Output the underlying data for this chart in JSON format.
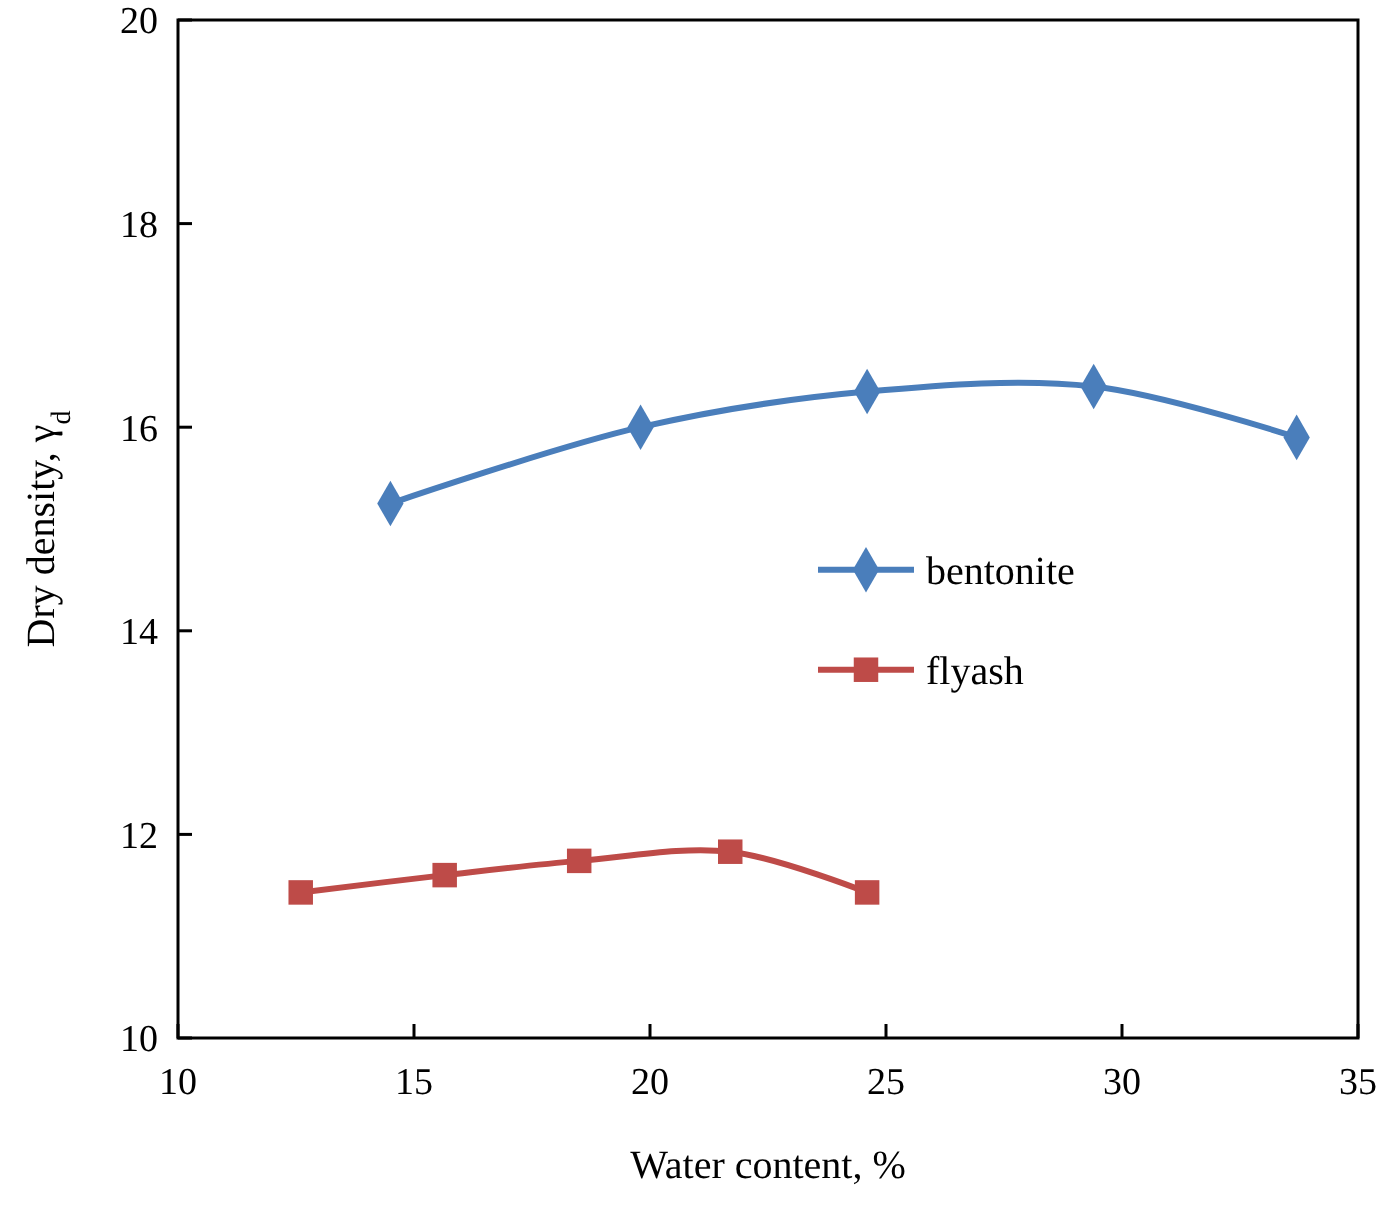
{
  "chart_data": {
    "type": "line",
    "xlabel": "Water content, %",
    "ylabel": "Dry density, γ$_{d}$",
    "xlim": [
      10,
      35
    ],
    "xticks": [
      10,
      15,
      20,
      25,
      30,
      35
    ],
    "ylim": [
      10,
      20
    ],
    "yticks": [
      10,
      12,
      14,
      16,
      18,
      20
    ],
    "grid": false,
    "legend": "right",
    "line_style": "solid",
    "series": [
      {
        "name": "bentonite",
        "color": "#4a7ebb",
        "marker": "diamond",
        "x": [
          14.5,
          19.8,
          24.6,
          29.4,
          33.7
        ],
        "values": [
          15.25,
          16.0,
          16.35,
          16.4,
          15.9
        ]
      },
      {
        "name": "flyash",
        "color": "#be4b48",
        "marker": "square",
        "x": [
          12.6,
          15.65,
          18.5,
          21.7,
          24.6
        ],
        "values": [
          11.43,
          11.6,
          11.74,
          11.83,
          11.43
        ]
      }
    ]
  }
}
